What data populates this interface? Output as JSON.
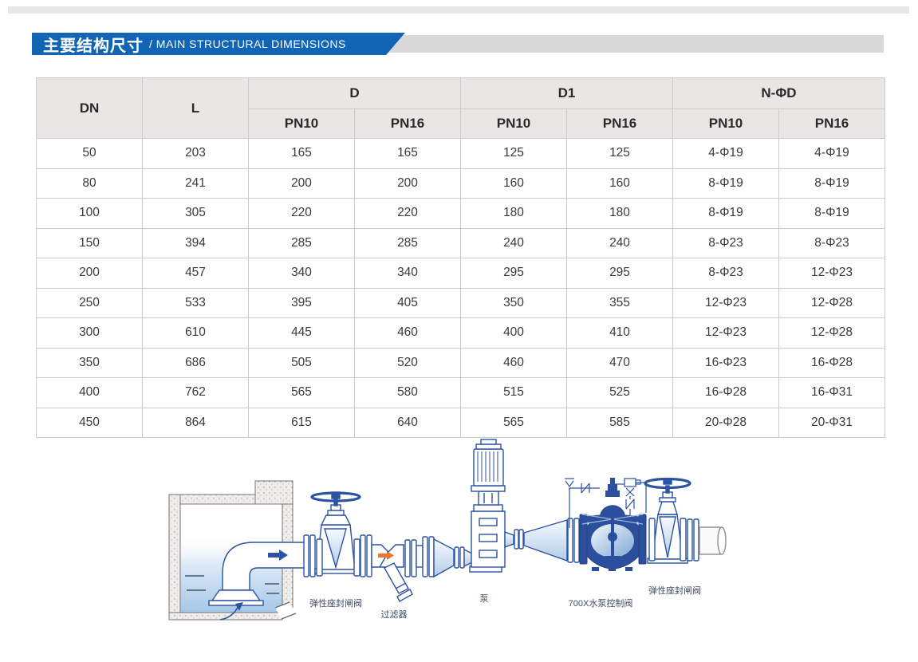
{
  "banner": {
    "title_zh": "主要结构尺寸",
    "title_en": "/ MAIN STRUCTURAL DIMENSIONS",
    "accent_color": "#1165b4",
    "bar_color": "#d9d9d9"
  },
  "table": {
    "header": {
      "dn": "DN",
      "l": "L",
      "d": "D",
      "d1": "D1",
      "n_phi_d": "N-ΦD",
      "pn10": "PN10",
      "pn16": "PN16"
    },
    "rows": [
      [
        "50",
        "203",
        "165",
        "165",
        "125",
        "125",
        "4-Φ19",
        "4-Φ19"
      ],
      [
        "80",
        "241",
        "200",
        "200",
        "160",
        "160",
        "8-Φ19",
        "8-Φ19"
      ],
      [
        "100",
        "305",
        "220",
        "220",
        "180",
        "180",
        "8-Φ19",
        "8-Φ19"
      ],
      [
        "150",
        "394",
        "285",
        "285",
        "240",
        "240",
        "8-Φ23",
        "8-Φ23"
      ],
      [
        "200",
        "457",
        "340",
        "340",
        "295",
        "295",
        "8-Φ23",
        "12-Φ23"
      ],
      [
        "250",
        "533",
        "395",
        "405",
        "350",
        "355",
        "12-Φ23",
        "12-Φ28"
      ],
      [
        "300",
        "610",
        "445",
        "460",
        "400",
        "410",
        "12-Φ23",
        "12-Φ28"
      ],
      [
        "350",
        "686",
        "505",
        "520",
        "460",
        "470",
        "16-Φ23",
        "16-Φ28"
      ],
      [
        "400",
        "762",
        "565",
        "580",
        "515",
        "525",
        "16-Φ28",
        "16-Φ31"
      ],
      [
        "450",
        "864",
        "615",
        "640",
        "565",
        "585",
        "20-Φ28",
        "20-Φ31"
      ]
    ]
  },
  "diagram": {
    "labels": [
      {
        "text": "弹性座封闸阀"
      },
      {
        "text": "过滤器"
      },
      {
        "text": "泵"
      },
      {
        "text": "700X水泵控制阀"
      },
      {
        "text": "弹性座封闸阀"
      }
    ],
    "line_color": "#2c52a2",
    "valve_fill_color": "#2b4f9d",
    "strainer_arrow_color": "#e8762c",
    "label_color": "#3f4a63"
  }
}
